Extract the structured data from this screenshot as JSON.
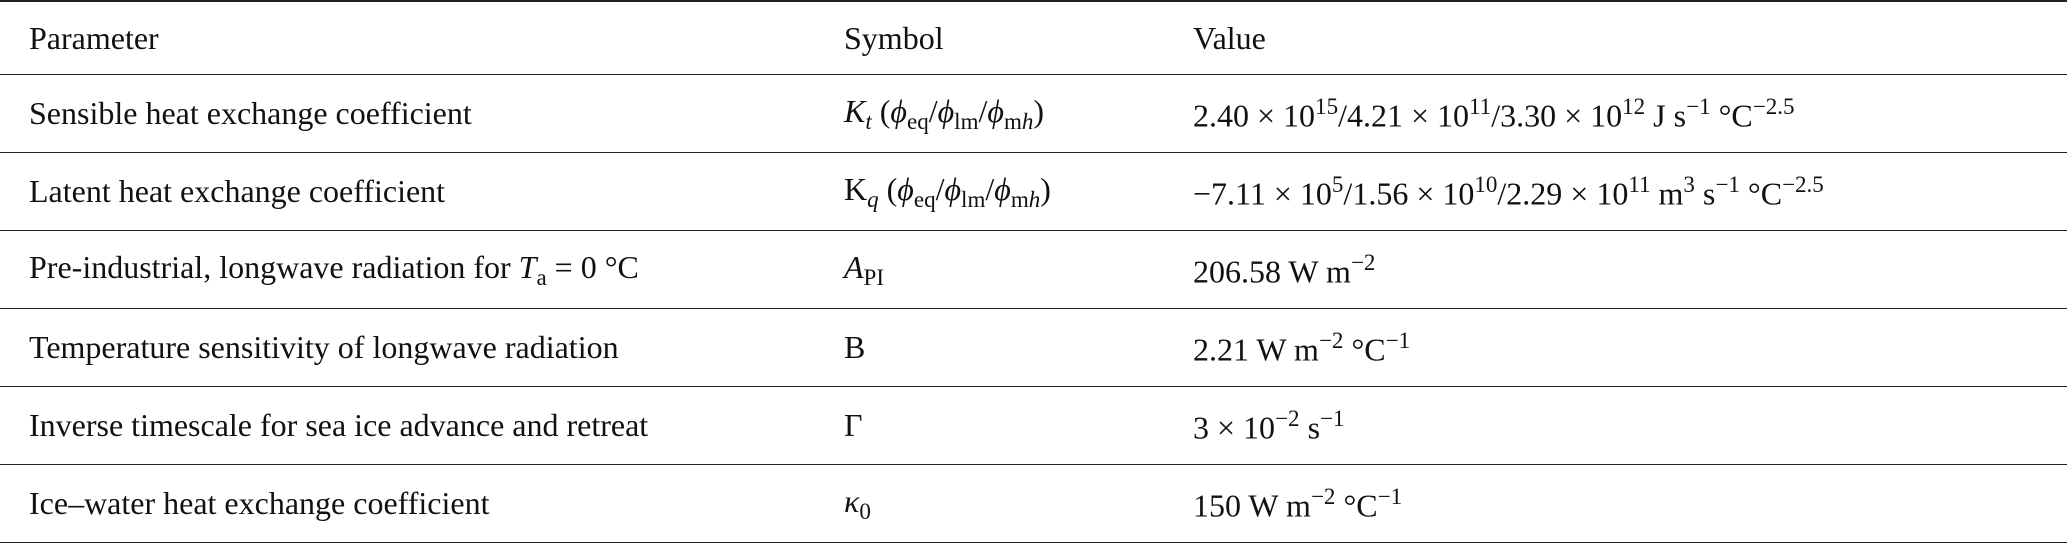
{
  "table": {
    "header": [
      "Parameter",
      "Symbol",
      "Value"
    ],
    "rows": [
      [
        "Sensible heat exchange coefficient",
        [
          {
            "t": "K",
            "f": "i"
          },
          {
            "t": "t",
            "f": "isub"
          },
          {
            "t": " ("
          },
          {
            "t": "ϕ",
            "f": "i"
          },
          {
            "t": "eq",
            "f": "sub"
          },
          {
            "t": "/"
          },
          {
            "t": "ϕ",
            "f": "i"
          },
          {
            "t": "lm",
            "f": "sub"
          },
          {
            "t": "/"
          },
          {
            "t": "ϕ",
            "f": "i"
          },
          {
            "t": "m",
            "f": "sub"
          },
          {
            "t": "h",
            "f": "isub"
          },
          {
            "t": ")"
          }
        ],
        [
          {
            "t": "2.40 × 10"
          },
          {
            "t": "15",
            "f": "sup"
          },
          {
            "t": "/4.21 × 10"
          },
          {
            "t": "11",
            "f": "sup"
          },
          {
            "t": "/3.30 × 10"
          },
          {
            "t": "12",
            "f": "sup"
          },
          {
            "t": " J s"
          },
          {
            "t": "−1",
            "f": "sup"
          },
          {
            "t": " °C"
          },
          {
            "t": "−2.5",
            "f": "sup"
          }
        ]
      ],
      [
        "Latent heat exchange coefficient",
        [
          {
            "t": "K"
          },
          {
            "t": "q",
            "f": "isub"
          },
          {
            "t": " ("
          },
          {
            "t": "ϕ",
            "f": "i"
          },
          {
            "t": "eq",
            "f": "sub"
          },
          {
            "t": "/"
          },
          {
            "t": "ϕ",
            "f": "i"
          },
          {
            "t": "lm",
            "f": "sub"
          },
          {
            "t": "/"
          },
          {
            "t": "ϕ",
            "f": "i"
          },
          {
            "t": "m",
            "f": "sub"
          },
          {
            "t": "h",
            "f": "isub"
          },
          {
            "t": ")"
          }
        ],
        [
          {
            "t": "−7.11 × 10"
          },
          {
            "t": "5",
            "f": "sup"
          },
          {
            "t": "/1.56 × 10"
          },
          {
            "t": "10",
            "f": "sup"
          },
          {
            "t": "/2.29 × 10"
          },
          {
            "t": "11",
            "f": "sup"
          },
          {
            "t": " m"
          },
          {
            "t": "3",
            "f": "sup"
          },
          {
            "t": " s"
          },
          {
            "t": "−1",
            "f": "sup"
          },
          {
            "t": " °C"
          },
          {
            "t": "−2.5",
            "f": "sup"
          }
        ]
      ],
      [
        [
          {
            "t": "Pre-industrial, longwave radiation for "
          },
          {
            "t": "T",
            "f": "i"
          },
          {
            "t": "a",
            "f": "sub"
          },
          {
            "t": " = 0 °C"
          }
        ],
        [
          {
            "t": "A",
            "f": "i"
          },
          {
            "t": "PI",
            "f": "sub"
          }
        ],
        [
          {
            "t": "206.58 W m"
          },
          {
            "t": "−2",
            "f": "sup"
          }
        ]
      ],
      [
        "Temperature sensitivity of longwave radiation",
        "B",
        [
          {
            "t": "2.21 W m"
          },
          {
            "t": "−2",
            "f": "sup"
          },
          {
            "t": " °C"
          },
          {
            "t": "−1",
            "f": "sup"
          }
        ]
      ],
      [
        "Inverse timescale for sea ice advance and retreat",
        "Γ",
        [
          {
            "t": "3 × 10"
          },
          {
            "t": "−2",
            "f": "sup"
          },
          {
            "t": " s"
          },
          {
            "t": "−1",
            "f": "sup"
          }
        ]
      ],
      [
        "Ice–water heat exchange coefficient",
        [
          {
            "t": "κ",
            "f": "i"
          },
          {
            "t": "0",
            "f": "sub"
          }
        ],
        [
          {
            "t": "150 W m"
          },
          {
            "t": "−2",
            "f": "sup"
          },
          {
            "t": " °C"
          },
          {
            "t": "−1",
            "f": "sup"
          }
        ]
      ]
    ]
  }
}
